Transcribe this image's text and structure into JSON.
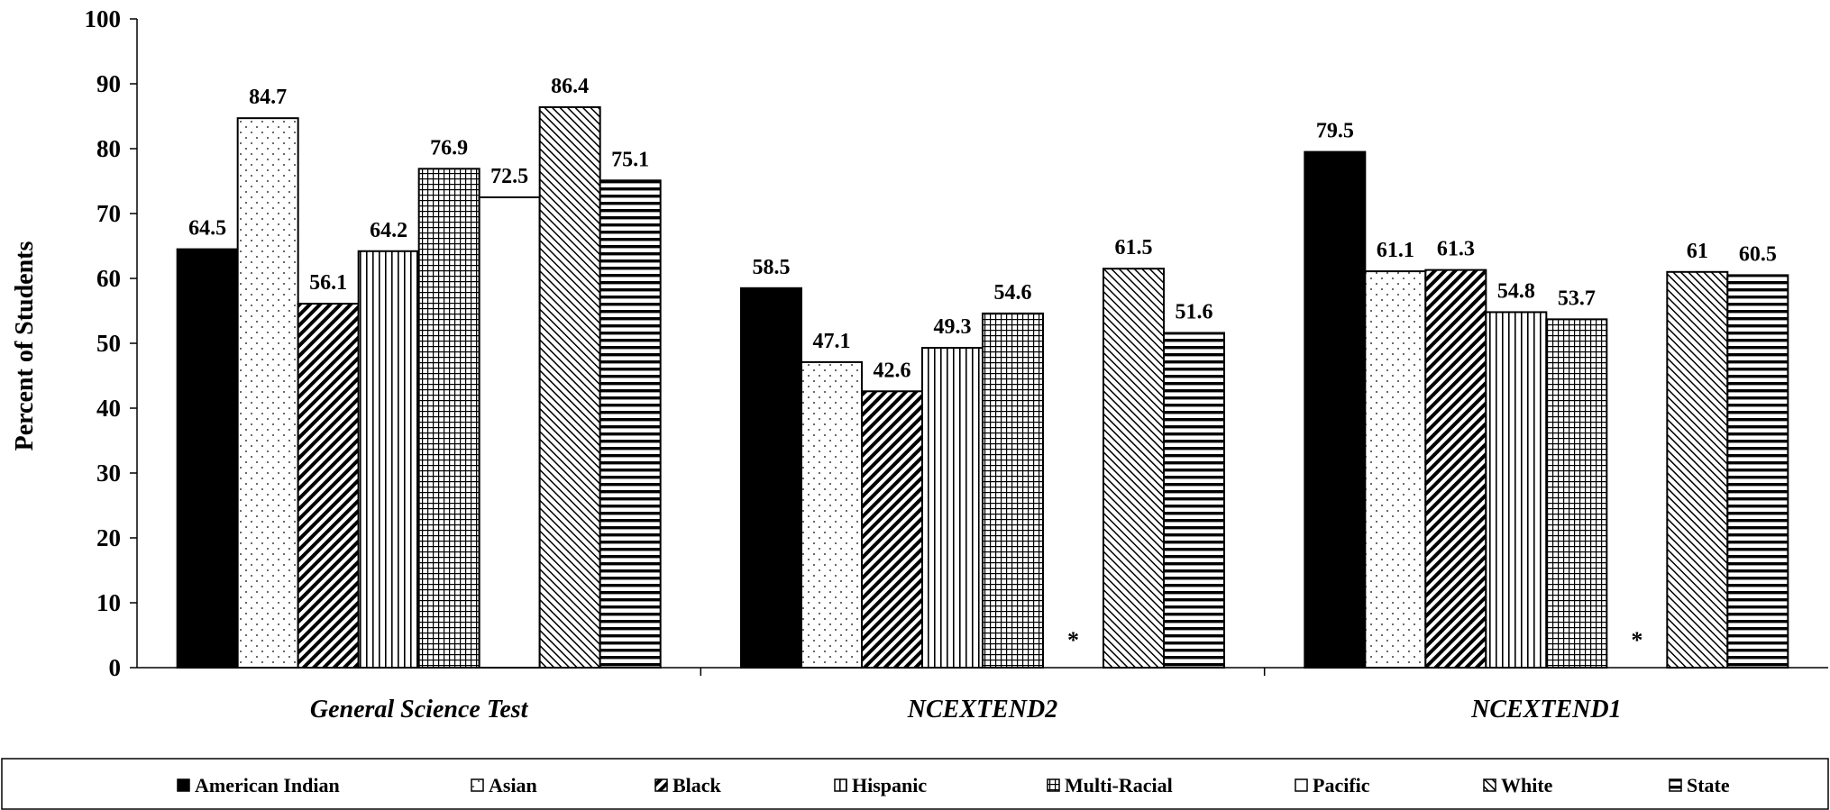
{
  "chart_data": {
    "type": "bar",
    "title": "",
    "xlabel": "",
    "ylabel": "Percent of Students",
    "ylim": [
      0,
      100
    ],
    "yticks": [
      0,
      10,
      20,
      30,
      40,
      50,
      60,
      70,
      80,
      90,
      100
    ],
    "grid": false,
    "legend_position": "bottom",
    "categories": [
      "General Science Test",
      "NCEXTEND2",
      "NCEXTEND1"
    ],
    "missing_marker": "*",
    "series": [
      {
        "name": "American Indian",
        "pattern": "solid-black",
        "values": [
          64.5,
          58.5,
          79.5
        ]
      },
      {
        "name": "Asian",
        "pattern": "dots",
        "values": [
          84.7,
          47.1,
          61.1
        ]
      },
      {
        "name": "Black",
        "pattern": "wide-diagonal-hatch",
        "values": [
          56.1,
          42.6,
          61.3
        ]
      },
      {
        "name": "Hispanic",
        "pattern": "vertical-lines",
        "values": [
          64.2,
          49.3,
          54.8
        ]
      },
      {
        "name": "Multi-Racial",
        "pattern": "grid",
        "values": [
          76.9,
          54.6,
          53.7
        ]
      },
      {
        "name": "Pacific",
        "pattern": "blank-white",
        "values": [
          72.5,
          null,
          null
        ]
      },
      {
        "name": "White",
        "pattern": "diagonal-lines",
        "values": [
          86.4,
          61.5,
          61
        ]
      },
      {
        "name": "State",
        "pattern": "horizontal-lines",
        "values": [
          75.1,
          51.6,
          60.5
        ]
      }
    ]
  }
}
